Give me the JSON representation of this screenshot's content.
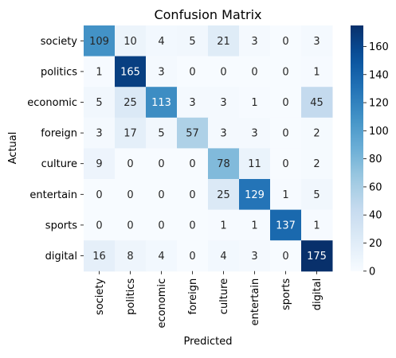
{
  "chart_data": {
    "type": "heatmap",
    "title": "Confusion Matrix",
    "xlabel": "Predicted",
    "ylabel": "Actual",
    "x_categories": [
      "society",
      "politics",
      "economic",
      "foreign",
      "culture",
      "entertain",
      "sports",
      "digital"
    ],
    "y_categories": [
      "society",
      "politics",
      "economic",
      "foreign",
      "culture",
      "entertain",
      "sports",
      "digital"
    ],
    "values": [
      [
        109,
        10,
        4,
        5,
        21,
        3,
        0,
        3
      ],
      [
        1,
        165,
        3,
        0,
        0,
        0,
        0,
        1
      ],
      [
        5,
        25,
        113,
        3,
        3,
        1,
        0,
        45
      ],
      [
        3,
        17,
        5,
        57,
        3,
        3,
        0,
        2
      ],
      [
        9,
        0,
        0,
        0,
        78,
        11,
        0,
        2
      ],
      [
        0,
        0,
        0,
        0,
        25,
        129,
        1,
        5
      ],
      [
        0,
        0,
        0,
        0,
        1,
        1,
        137,
        1
      ],
      [
        16,
        8,
        4,
        0,
        4,
        3,
        0,
        175
      ]
    ],
    "colormap": "Blues",
    "colorbar": {
      "min": 0,
      "max": 175,
      "ticks": [
        "0",
        "20",
        "40",
        "60",
        "80",
        "100",
        "120",
        "140",
        "160"
      ]
    },
    "annotations": "cell counts shown in every cell",
    "grid": false
  }
}
